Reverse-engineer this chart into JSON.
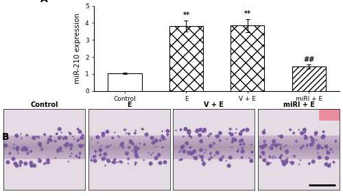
{
  "categories": [
    "Control",
    "E",
    "V + E",
    "miRI + E"
  ],
  "values": [
    1.03,
    3.82,
    3.85,
    1.42
  ],
  "errors": [
    0.05,
    0.32,
    0.38,
    0.12
  ],
  "ylim": [
    0,
    5
  ],
  "yticks": [
    0,
    1,
    2,
    3,
    4,
    5
  ],
  "ylabel": "miR-210 expression",
  "panel_A_label": "A",
  "panel_B_label": "B",
  "bar_linewidth": 0.8,
  "annotations": [
    "",
    "**",
    "**",
    "##"
  ],
  "annot_fontsize": 7,
  "tick_fontsize": 6.5,
  "label_fontsize": 7.5,
  "background_color": "#ffffff",
  "microscopy_labels": [
    "Control",
    "E",
    "V + E",
    "miRI + E"
  ]
}
